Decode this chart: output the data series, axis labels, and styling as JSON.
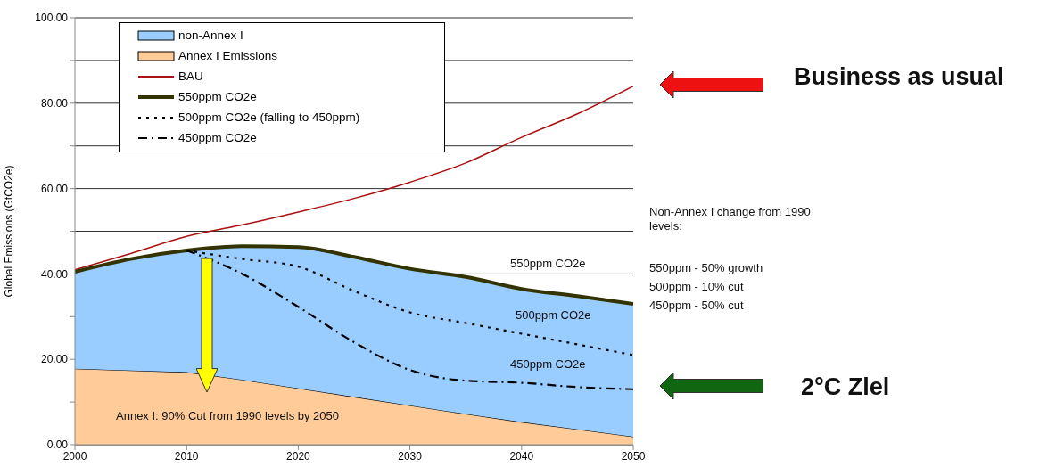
{
  "chart_data": {
    "type": "area",
    "ylabel": "Global Emissions (GtCO2e)",
    "stacked": true,
    "grid": "y",
    "legend": "top left",
    "xlim": [
      2000,
      2050
    ],
    "xticks": [
      2000,
      2010,
      2020,
      2030,
      2040,
      2050
    ],
    "ylim": [
      0,
      100
    ],
    "yticks": [
      {
        "value": 0,
        "label": "0.00"
      },
      {
        "value": 10,
        "label": null
      },
      {
        "value": 20,
        "label": "20.00"
      },
      {
        "value": 30,
        "label": null
      },
      {
        "value": 40,
        "label": "40.00"
      },
      {
        "value": 50,
        "label": null
      },
      {
        "value": 60,
        "label": "60.00"
      },
      {
        "value": 70,
        "label": null
      },
      {
        "value": 80,
        "label": "80.00"
      },
      {
        "value": 90,
        "label": null
      },
      {
        "value": 100,
        "label": "100.00"
      }
    ],
    "x": [
      2000,
      2005,
      2010,
      2015,
      2020,
      2025,
      2030,
      2035,
      2040,
      2045,
      2050
    ],
    "series": [
      {
        "name": "Annex I Emissions",
        "color": "#ffcc99",
        "values": [
          17.8,
          17.4,
          17,
          15.2,
          13.2,
          11.2,
          9.2,
          7.2,
          5.3,
          3.6,
          1.9
        ]
      },
      {
        "name": "non-Annex I",
        "color": "#99ccff",
        "values": [
          22.7,
          26.1,
          28.5,
          31.3,
          33.1,
          32.8,
          32,
          32.1,
          31.2,
          31.2,
          31.1
        ]
      },
      {
        "name": "BAU",
        "type": "line",
        "color": "#aa1111",
        "line_style": "solid",
        "values": [
          41,
          44.8,
          48.8,
          51.5,
          54.5,
          57.7,
          61.5,
          66,
          72,
          77.5,
          84
        ]
      },
      {
        "name": "550ppm CO2e",
        "type": "line",
        "color": "#333300",
        "line_style": "solid",
        "values": [
          40.5,
          43.5,
          45.5,
          46.5,
          46.3,
          44,
          41.2,
          39.3,
          36.5,
          34.8,
          33
        ]
      },
      {
        "name": "500ppm CO2e (falling to 450ppm)",
        "type": "line",
        "color": "#000000",
        "line_style": "dotted",
        "x": [
          2010,
          2015,
          2020,
          2025,
          2030,
          2035,
          2040,
          2045,
          2050
        ],
        "values": [
          45.5,
          43.5,
          41.7,
          36,
          31,
          28.5,
          26,
          23.5,
          21
        ]
      },
      {
        "name": "450ppm CO2e",
        "type": "line",
        "color": "#000000",
        "line_style": "dashed",
        "x": [
          2010,
          2015,
          2020,
          2025,
          2030,
          2035,
          2040,
          2045,
          2050
        ],
        "values": [
          45.5,
          40,
          32.3,
          24,
          17.5,
          15,
          14.5,
          13.5,
          13
        ]
      }
    ],
    "annotations": [
      "550ppm CO2e",
      "500ppm CO2e",
      "450ppm CO2e",
      "Annex I: 90% Cut from 1990 levels by 2050",
      "Non-Annex I change from 1990 levels:",
      "550ppm - 50% growth",
      "500ppm - 10% cut",
      "450ppm - 50% cut",
      "Business as usual",
      "2°C Zlel"
    ]
  }
}
